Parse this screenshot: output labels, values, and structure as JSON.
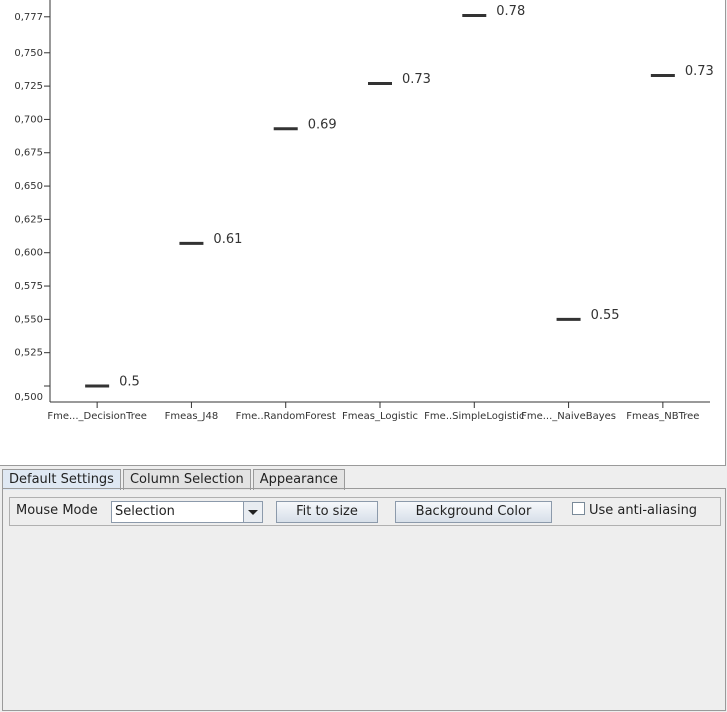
{
  "chart_data": {
    "type": "dash",
    "categories": [
      "Fme..._DecisionTree",
      "Fmeas_J48",
      "Fme..RandomForest",
      "Fmeas_Logistic",
      "Fme..SimpleLogistic",
      "Fme..._NaiveBayes",
      "Fmeas_NBTree"
    ],
    "values": [
      0.5,
      0.607,
      0.693,
      0.727,
      0.778,
      0.55,
      0.733
    ],
    "value_labels": [
      "0.5",
      "0.61",
      "0.69",
      "0.73",
      "0.78",
      "0.55",
      "0.73"
    ],
    "color": "#333333",
    "ylim": [
      0.488,
      0.7896
    ],
    "yticks": [
      {
        "value": 0.5,
        "label": "0,500"
      },
      {
        "value": 0.525,
        "label": "0,525"
      },
      {
        "value": 0.55,
        "label": "0,550"
      },
      {
        "value": 0.575,
        "label": "0,575"
      },
      {
        "value": 0.6,
        "label": "0,600"
      },
      {
        "value": 0.625,
        "label": "0,625"
      },
      {
        "value": 0.65,
        "label": "0,650"
      },
      {
        "value": 0.675,
        "label": "0,675"
      },
      {
        "value": 0.7,
        "label": "0,700"
      },
      {
        "value": 0.725,
        "label": "0,725"
      },
      {
        "value": 0.75,
        "label": "0,750"
      },
      {
        "value": 0.777,
        "label": "0,777"
      }
    ],
    "grid": false
  },
  "tabs": [
    "Default Settings",
    "Column Selection",
    "Appearance"
  ],
  "controls": {
    "mouse_mode_label": "Mouse Mode",
    "mouse_mode_value": "Selection",
    "fit_button": "Fit to size",
    "background_button": "Background Color",
    "antialias_checkbox": "Use anti-aliasing"
  }
}
